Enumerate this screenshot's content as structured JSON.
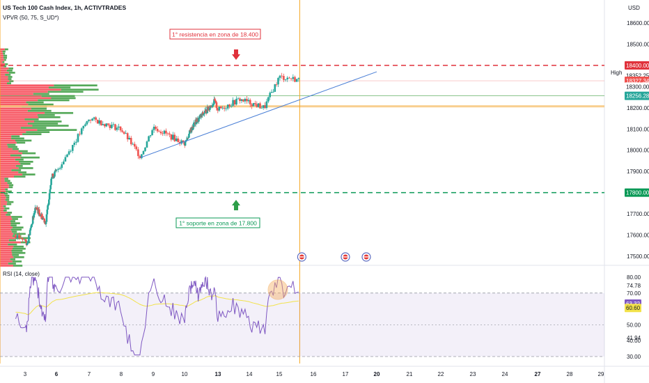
{
  "header": {
    "symbol_title": "US Tech 100 Cash Index, 1h, ACTIVTRADES",
    "vpvr_label": "VPVR (50, 75, S_UD*)",
    "currency": "USD"
  },
  "annotations": {
    "resistance_text": "1° resistencia en zona de 18.400",
    "support_text": "1° soporte en zona de 17.800",
    "high_label": "High"
  },
  "colors": {
    "resistance": "#e0313b",
    "support": "#0a9956",
    "candle_up": "#26a69a",
    "candle_down": "#ef5350",
    "trendline": "#4a7fd6",
    "zone": "#f7c77d",
    "vertical_line": "#f5a623",
    "rsi_line": "#7e57c2",
    "rsi_ma": "#f2e24a",
    "vol_up": "#43a047",
    "vol_down": "#f7525f"
  },
  "chart_data": [
    {
      "type": "candlestick",
      "title": "US Tech 100 Cash Index, 1h, ACTIVTRADES",
      "y_range": [
        17450,
        18700
      ],
      "y_ticks": [
        18600.0,
        18500.0,
        18400.0,
        18300.0,
        18200.0,
        18100.0,
        18000.0,
        17900.0,
        17800.0,
        17700.0,
        17600.0,
        17500.0
      ],
      "x_ticks": [
        "3",
        "6",
        "7",
        "8",
        "9",
        "10",
        "13",
        "14",
        "15",
        "16",
        "17",
        "20",
        "21",
        "22",
        "23",
        "24",
        "27",
        "28",
        "29"
      ],
      "x_ticks_bold": [
        "6",
        "13",
        "20",
        "27"
      ],
      "price_labels": [
        {
          "text": "18400.00",
          "value": 18400,
          "style": "resistance"
        },
        {
          "text": "18352.25",
          "value": 18352.25,
          "style": "plain"
        },
        {
          "text": "18327.34",
          "value": 18327.34,
          "style": "last"
        },
        {
          "text": "18300.00",
          "value": 18300,
          "style": "plain"
        },
        {
          "text": "18256.28",
          "value": 18256.28,
          "style": "green"
        },
        {
          "text": "17800.00",
          "value": 17800,
          "style": "support"
        }
      ],
      "levels": {
        "resistance": 18400,
        "support": 17800,
        "zone": [
          18202,
          18212
        ],
        "green_line": 18256.28,
        "red_line": 18327.34
      },
      "trendline": {
        "from": [
          8.6,
          17965
        ],
        "to": [
          20.0,
          18370
        ]
      },
      "vertical_line_x": 15.6,
      "anchors": [
        2.7,
        3.2,
        4,
        5,
        5.5,
        6,
        7,
        8,
        8.6,
        9,
        10,
        10.8,
        12.7,
        13,
        13.7,
        14.5,
        14.7,
        15,
        15.3,
        15.6
      ],
      "anchor_prices": [
        17600,
        17560,
        17730,
        17660,
        17870,
        17900,
        18150,
        18100,
        17970,
        18110,
        18030,
        18120,
        18230,
        18190,
        18240,
        18200,
        18260,
        18345,
        18340,
        18330
      ],
      "event_markers_x": [
        15.6,
        17,
        19
      ]
    },
    {
      "type": "line",
      "title": "RSI (14, close)",
      "y_range": [
        28,
        83
      ],
      "y_ticks": [
        80.0,
        70.0,
        60.0,
        50.0,
        40.0,
        30.0
      ],
      "y_extra_labels": [
        "74.78",
        "41.94"
      ],
      "bands": [
        70,
        30
      ],
      "midline": 50,
      "series": [
        {
          "name": "RSI",
          "value_label": "63.32",
          "last": 63.32
        },
        {
          "name": "MA",
          "value_label": "60.60",
          "last": 60.6
        }
      ]
    }
  ]
}
